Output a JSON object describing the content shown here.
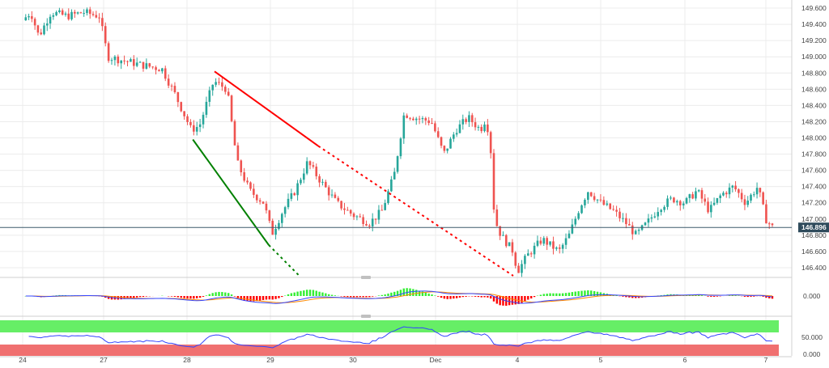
{
  "chart_data": {
    "type": "candlestick",
    "title": "",
    "xlabel": "",
    "ylabel": "",
    "ylim": [
      146.3,
      149.7
    ],
    "y_ticks": [
      "149.600",
      "149.400",
      "149.200",
      "149.000",
      "148.800",
      "148.600",
      "148.400",
      "148.200",
      "148.000",
      "147.800",
      "147.600",
      "147.400",
      "147.200",
      "147.000",
      "146.800",
      "146.600",
      "146.400"
    ],
    "x_ticks": [
      {
        "label": "24",
        "t": 0
      },
      {
        "label": "27",
        "t": 1
      },
      {
        "label": "28",
        "t": 2
      },
      {
        "label": "29",
        "t": 3
      },
      {
        "label": "30",
        "t": 4
      },
      {
        "label": "Dec",
        "t": 5
      },
      {
        "label": "4",
        "t": 6
      },
      {
        "label": "5",
        "t": 7
      },
      {
        "label": "6",
        "t": 8
      },
      {
        "label": "7",
        "t": 9
      }
    ],
    "current_price": {
      "value": 146.896,
      "label": "146.896"
    },
    "price_keypoints": [
      [
        0.0,
        149.45
      ],
      [
        0.1,
        149.55
      ],
      [
        0.2,
        149.25
      ],
      [
        0.35,
        149.55
      ],
      [
        0.55,
        149.5
      ],
      [
        0.75,
        149.55
      ],
      [
        0.95,
        149.5
      ],
      [
        1.05,
        149.0
      ],
      [
        1.25,
        148.95
      ],
      [
        1.45,
        148.9
      ],
      [
        1.7,
        148.85
      ],
      [
        1.85,
        148.55
      ],
      [
        2.05,
        148.1
      ],
      [
        2.15,
        148.15
      ],
      [
        2.32,
        148.7
      ],
      [
        2.48,
        148.6
      ],
      [
        2.6,
        147.7
      ],
      [
        2.75,
        147.35
      ],
      [
        2.92,
        147.2
      ],
      [
        3.02,
        146.82
      ],
      [
        3.15,
        147.1
      ],
      [
        3.3,
        147.35
      ],
      [
        3.45,
        147.7
      ],
      [
        3.62,
        147.45
      ],
      [
        3.8,
        147.2
      ],
      [
        4.0,
        147.05
      ],
      [
        4.2,
        146.95
      ],
      [
        4.35,
        147.1
      ],
      [
        4.5,
        147.55
      ],
      [
        4.62,
        148.3
      ],
      [
        4.75,
        148.25
      ],
      [
        4.95,
        148.2
      ],
      [
        5.1,
        147.8
      ],
      [
        5.25,
        148.1
      ],
      [
        5.4,
        148.25
      ],
      [
        5.55,
        148.1
      ],
      [
        5.62,
        148.25
      ],
      [
        5.68,
        147.8
      ],
      [
        5.72,
        147.0
      ],
      [
        5.8,
        146.8
      ],
      [
        5.95,
        146.6
      ],
      [
        6.0,
        146.35
      ],
      [
        6.12,
        146.55
      ],
      [
        6.3,
        146.75
      ],
      [
        6.5,
        146.6
      ],
      [
        6.62,
        146.8
      ],
      [
        6.75,
        147.15
      ],
      [
        6.85,
        147.35
      ],
      [
        7.0,
        147.2
      ],
      [
        7.15,
        147.1
      ],
      [
        7.3,
        146.95
      ],
      [
        7.42,
        146.8
      ],
      [
        7.55,
        146.95
      ],
      [
        7.7,
        147.15
      ],
      [
        7.85,
        147.25
      ],
      [
        8.0,
        147.2
      ],
      [
        8.15,
        147.35
      ],
      [
        8.3,
        147.1
      ],
      [
        8.45,
        147.3
      ],
      [
        8.6,
        147.4
      ],
      [
        8.75,
        147.2
      ],
      [
        8.9,
        147.4
      ],
      [
        9.0,
        147.0
      ],
      [
        9.08,
        146.9
      ]
    ],
    "trendlines": [
      {
        "color": "#ff0000",
        "style": "solid",
        "from": [
          2.33,
          148.82
        ],
        "to": [
          3.58,
          147.9
        ]
      },
      {
        "color": "#ff0000",
        "style": "dotted",
        "from": [
          3.58,
          147.9
        ],
        "to": [
          5.95,
          146.3
        ]
      },
      {
        "color": "#008000",
        "style": "solid",
        "from": [
          2.07,
          147.98
        ],
        "to": [
          2.98,
          146.68
        ]
      },
      {
        "color": "#008000",
        "style": "dotted",
        "from": [
          2.98,
          146.68
        ],
        "to": [
          3.35,
          146.3
        ]
      }
    ],
    "indicator_macd": {
      "zero_label": "0.000",
      "colors": {
        "positive": "#33ee33",
        "negative": "#ff0000",
        "macd": "#3344ff",
        "signal": "#ff8800"
      }
    },
    "indicator_rsi": {
      "labels": [
        "50.000",
        "0.000"
      ],
      "colors": {
        "upper_band": "#66ee66",
        "lower_band": "#f07070",
        "line": "#3344ff"
      }
    }
  }
}
